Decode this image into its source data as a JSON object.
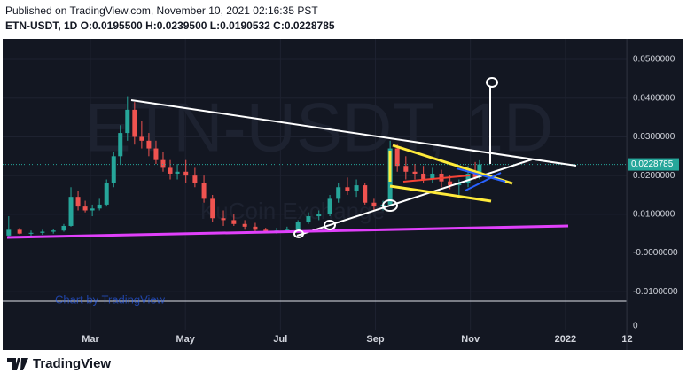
{
  "header": {
    "published": "Published on TradingView.com, November 10, 2021 02:16:35 PST",
    "symbol_line": "ETN-USDT, 1D  O:0.0195500 H:0.0239500 L:0.0190532 C:0.0228785"
  },
  "chart_data": {
    "type": "candlestick",
    "watermark": "ETN-USDT, 1D",
    "watermark_sub": "KuCoin Exchange",
    "credit": "Chart by TradingView",
    "x": [
      0.28,
      0.51,
      0.75,
      0.99,
      1.22,
      1.44,
      1.59,
      1.74,
      1.89,
      2.04,
      2.19,
      2.34,
      2.49,
      2.63,
      2.78,
      2.93,
      3.08,
      3.23,
      3.38,
      3.53,
      3.68,
      3.83,
      4.01,
      4.2,
      4.39,
      4.57,
      4.8,
      5.02,
      5.25,
      5.47,
      5.69,
      5.92,
      6.14,
      6.37,
      6.59,
      6.81,
      7.04,
      7.22,
      7.41,
      7.6,
      7.78,
      7.97,
      8.16,
      8.31,
      8.46,
      8.64,
      8.83,
      9.01,
      9.2,
      9.39,
      9.57,
      9.76,
      9.95,
      10.1,
      10.19
    ],
    "open": [
      0.0045,
      0.006,
      0.005,
      0.0052,
      0.0055,
      0.0058,
      0.007,
      0.0145,
      0.012,
      0.011,
      0.0115,
      0.0125,
      0.018,
      0.025,
      0.031,
      0.037,
      0.03,
      0.029,
      0.027,
      0.024,
      0.022,
      0.0205,
      0.021,
      0.02,
      0.018,
      0.014,
      0.009,
      0.0085,
      0.0075,
      0.0068,
      0.006,
      0.0056,
      0.0058,
      0.006,
      0.008,
      0.0095,
      0.01,
      0.014,
      0.017,
      0.016,
      0.0175,
      0.013,
      0.012,
      0.0125,
      0.027,
      0.0225,
      0.021,
      0.0205,
      0.019,
      0.0205,
      0.0185,
      0.0175,
      0.018,
      0.0205,
      0.01955
    ],
    "high": [
      0.0095,
      0.0065,
      0.0058,
      0.006,
      0.0062,
      0.0075,
      0.017,
      0.016,
      0.0135,
      0.0125,
      0.014,
      0.019,
      0.026,
      0.033,
      0.0405,
      0.039,
      0.034,
      0.031,
      0.029,
      0.026,
      0.024,
      0.023,
      0.024,
      0.022,
      0.02,
      0.015,
      0.011,
      0.01,
      0.0085,
      0.0078,
      0.0065,
      0.0065,
      0.0068,
      0.0085,
      0.0105,
      0.011,
      0.015,
      0.018,
      0.0195,
      0.019,
      0.018,
      0.014,
      0.0135,
      0.029,
      0.028,
      0.025,
      0.023,
      0.0225,
      0.022,
      0.0215,
      0.02,
      0.019,
      0.0225,
      0.0235,
      0.02395
    ],
    "low": [
      0.004,
      0.0048,
      0.0045,
      0.0047,
      0.005,
      0.0055,
      0.0068,
      0.011,
      0.0105,
      0.0095,
      0.011,
      0.012,
      0.017,
      0.023,
      0.029,
      0.028,
      0.027,
      0.025,
      0.023,
      0.021,
      0.019,
      0.019,
      0.018,
      0.017,
      0.013,
      0.008,
      0.007,
      0.007,
      0.006,
      0.0055,
      0.0052,
      0.005,
      0.0052,
      0.0055,
      0.0075,
      0.0085,
      0.0095,
      0.013,
      0.015,
      0.0145,
      0.0125,
      0.011,
      0.011,
      0.012,
      0.021,
      0.019,
      0.019,
      0.018,
      0.018,
      0.017,
      0.0165,
      0.015,
      0.017,
      0.019,
      0.0190532
    ],
    "close": [
      0.006,
      0.005,
      0.0052,
      0.0055,
      0.0058,
      0.007,
      0.0145,
      0.012,
      0.011,
      0.0115,
      0.0125,
      0.018,
      0.025,
      0.031,
      0.037,
      0.03,
      0.029,
      0.027,
      0.024,
      0.022,
      0.0205,
      0.021,
      0.02,
      0.018,
      0.014,
      0.009,
      0.0085,
      0.0075,
      0.0068,
      0.006,
      0.0056,
      0.0058,
      0.006,
      0.008,
      0.0095,
      0.01,
      0.014,
      0.017,
      0.016,
      0.0175,
      0.013,
      0.012,
      0.0125,
      0.027,
      0.0225,
      0.021,
      0.0205,
      0.019,
      0.0205,
      0.0185,
      0.0175,
      0.018,
      0.0205,
      0.0196,
      0.0228785
    ],
    "up_color": "#26a69a",
    "down_color": "#ef5350",
    "xlim": [
      0.246,
      13.29
    ],
    "xticks": [
      {
        "value": 2,
        "label": "Mar"
      },
      {
        "value": 4,
        "label": "May"
      },
      {
        "value": 6,
        "label": "Jul"
      },
      {
        "value": 8,
        "label": "Sep"
      },
      {
        "value": 10,
        "label": "Nov"
      },
      {
        "value": 12,
        "label": "2022"
      },
      {
        "value": 13.3,
        "label": "12"
      }
    ],
    "ylim": [
      -0.012,
      0.0539
    ],
    "yticks": [
      {
        "value": -0.01,
        "label": "-0.0100000"
      },
      {
        "value": 0,
        "label": "-0.0000000"
      },
      {
        "value": 0.01,
        "label": "0.0100000"
      },
      {
        "value": 0.02,
        "label": "0.0200000"
      },
      {
        "value": 0.03,
        "label": "0.0300000"
      },
      {
        "value": 0.04,
        "label": "0.0400000"
      },
      {
        "value": 0.05,
        "label": "0.0500000"
      }
    ],
    "grid": true,
    "last_price": 0.0228785,
    "volume_yticks": [
      0
    ]
  },
  "footer": {
    "brand": "TradingView"
  }
}
